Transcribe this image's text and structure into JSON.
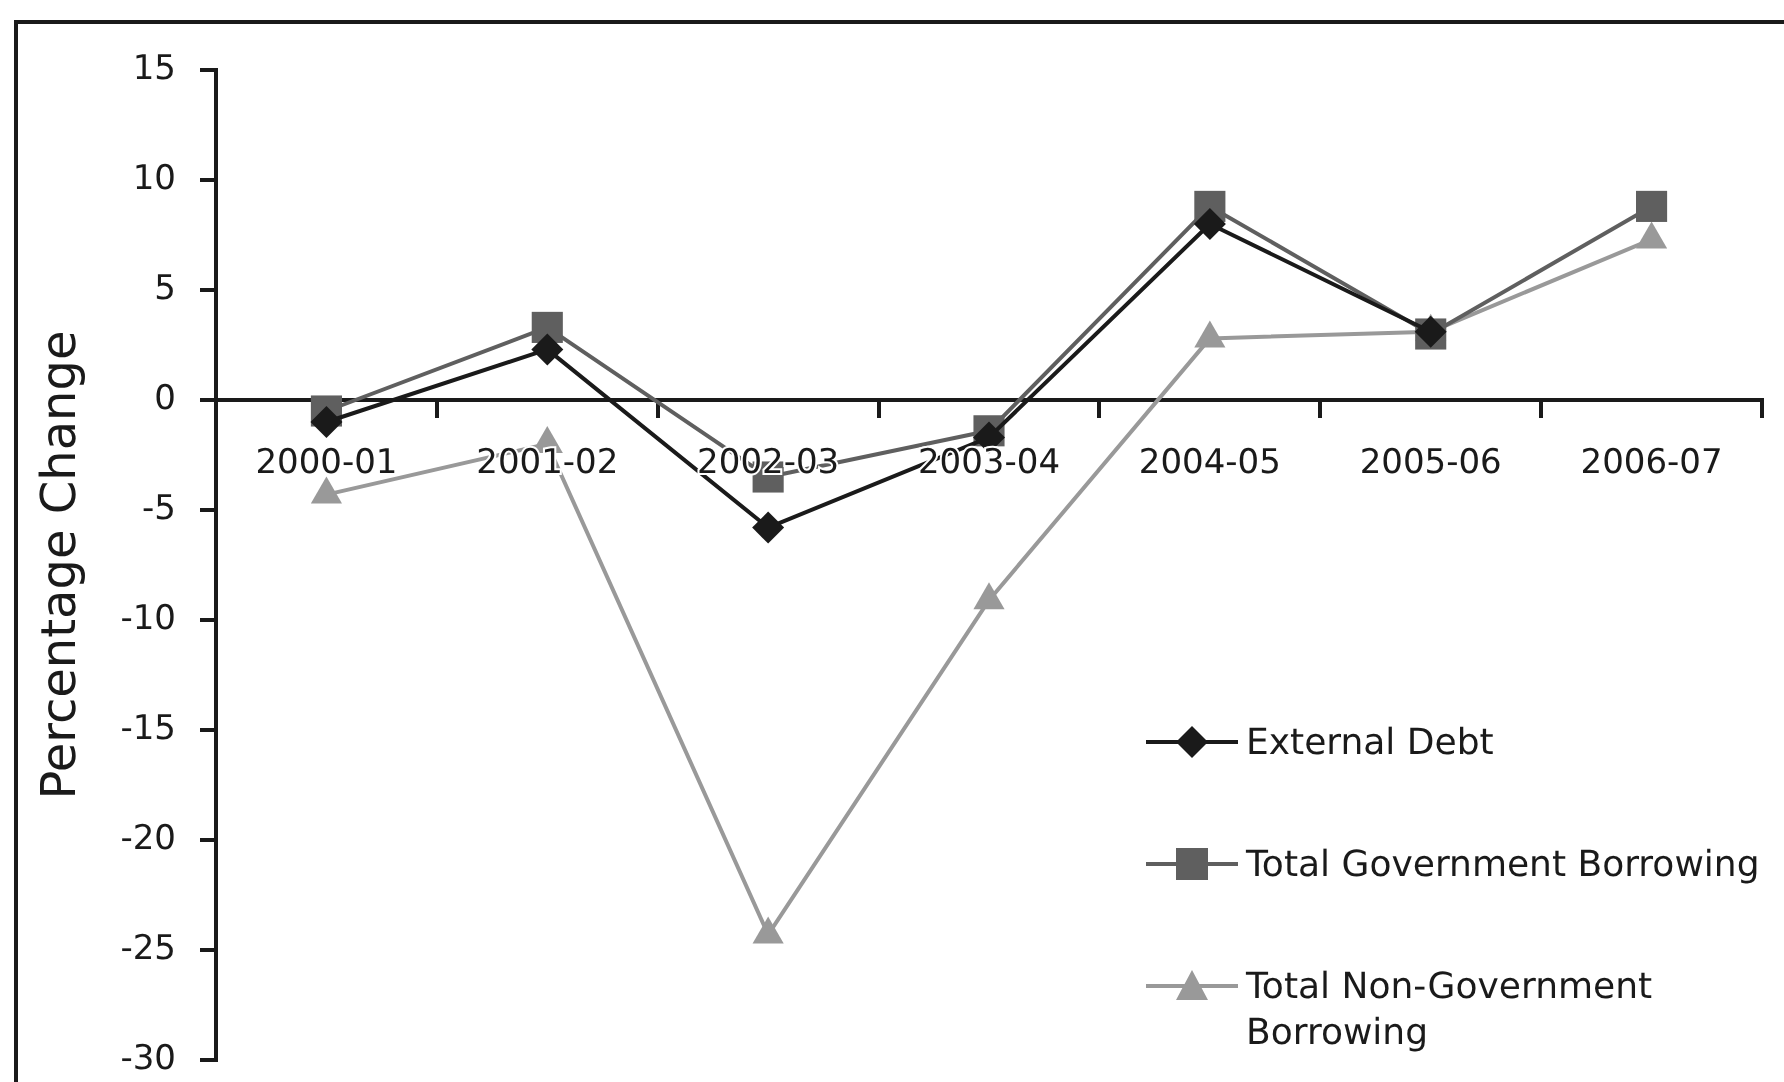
{
  "chart_data": {
    "type": "line",
    "ylabel": "Percentage Change",
    "categories": [
      "2000-01",
      "2001-02",
      "2002-03",
      "2003-04",
      "2004-05",
      "2005-06",
      "2006-07"
    ],
    "series": [
      {
        "name": "External Debt",
        "color": "#1a1a1a",
        "marker": "diamond",
        "values": [
          -1.0,
          2.3,
          -5.8,
          -1.7,
          8.0,
          3.1,
          null
        ]
      },
      {
        "name": "Total Government Borrowing",
        "color": "#5f5f5f",
        "marker": "square",
        "values": [
          -0.5,
          3.3,
          -3.5,
          -1.4,
          8.8,
          3.0,
          8.8
        ]
      },
      {
        "name": "Total Non-Government Borrowing",
        "color": "#999999",
        "marker": "triangle",
        "values": [
          -4.3,
          -2.0,
          -24.3,
          -9.1,
          2.8,
          3.1,
          7.3
        ]
      }
    ],
    "ylim": [
      -30,
      15
    ],
    "yticks": [
      -30,
      -25,
      -20,
      -15,
      -10,
      -5,
      0,
      5,
      10,
      15
    ],
    "grid": false,
    "legend": "bottom right",
    "line_style": "solid"
  }
}
